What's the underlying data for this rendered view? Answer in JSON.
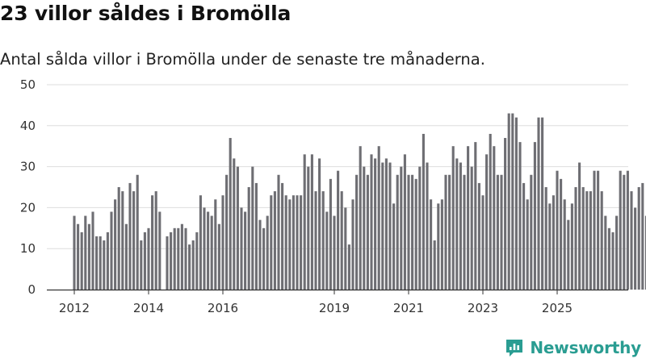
{
  "header": {
    "title": "23 villor såldes i Bromölla",
    "subtitle": "Antal sålda villor i Bromölla under de senaste tre månaderna."
  },
  "brand": {
    "name": "Newsworthy"
  },
  "colors": {
    "bar": "#6e6e73",
    "highlight": "#2a9d92",
    "grid": "#dddddd",
    "axis": "#333333"
  },
  "chart_data": {
    "type": "bar",
    "title": "23 villor såldes i Bromölla",
    "subtitle": "Antal sålda villor i Bromölla under de senaste tre månaderna.",
    "xlabel": "",
    "ylabel": "",
    "ylim": [
      0,
      50
    ],
    "yticks": [
      0,
      10,
      20,
      30,
      40,
      50
    ],
    "grid": true,
    "start": "2011-10",
    "x_tick_labels": [
      {
        "label": "2012",
        "index": 0
      },
      {
        "label": "2014",
        "index": 20
      },
      {
        "label": "2016",
        "index": 40
      },
      {
        "label": "2019",
        "index": 70
      },
      {
        "label": "2021",
        "index": 90
      },
      {
        "label": "2023",
        "index": 110
      },
      {
        "label": "2025",
        "index": 130
      }
    ],
    "values": [
      18,
      16,
      14,
      18,
      16,
      19,
      13,
      13,
      12,
      14,
      19,
      22,
      25,
      24,
      16,
      26,
      24,
      28,
      12,
      14,
      15,
      23,
      24,
      19,
      0,
      13,
      14,
      15,
      15,
      16,
      15,
      11,
      12,
      14,
      23,
      20,
      19,
      18,
      22,
      16,
      23,
      28,
      37,
      32,
      30,
      20,
      19,
      25,
      30,
      26,
      17,
      15,
      18,
      23,
      24,
      28,
      26,
      23,
      22,
      23,
      23,
      23,
      33,
      30,
      33,
      24,
      32,
      24,
      19,
      27,
      18,
      29,
      24,
      20,
      11,
      22,
      28,
      35,
      30,
      28,
      33,
      32,
      35,
      31,
      32,
      31,
      21,
      28,
      30,
      33,
      28,
      28,
      27,
      30,
      38,
      31,
      22,
      12,
      21,
      22,
      28,
      28,
      35,
      32,
      31,
      28,
      35,
      30,
      36,
      26,
      23,
      33,
      38,
      35,
      28,
      28,
      37,
      43,
      43,
      42,
      36,
      26,
      22,
      28,
      36,
      42,
      42,
      25,
      21,
      23,
      29,
      27,
      22,
      17,
      21,
      25,
      31,
      25,
      24,
      24,
      29,
      29,
      24,
      18,
      15,
      14,
      18,
      29,
      28,
      29,
      24,
      20,
      25,
      26,
      18,
      24,
      30,
      31,
      25,
      21,
      23,
      26,
      25,
      23
    ],
    "highlight_last": true,
    "last_label": "23"
  }
}
